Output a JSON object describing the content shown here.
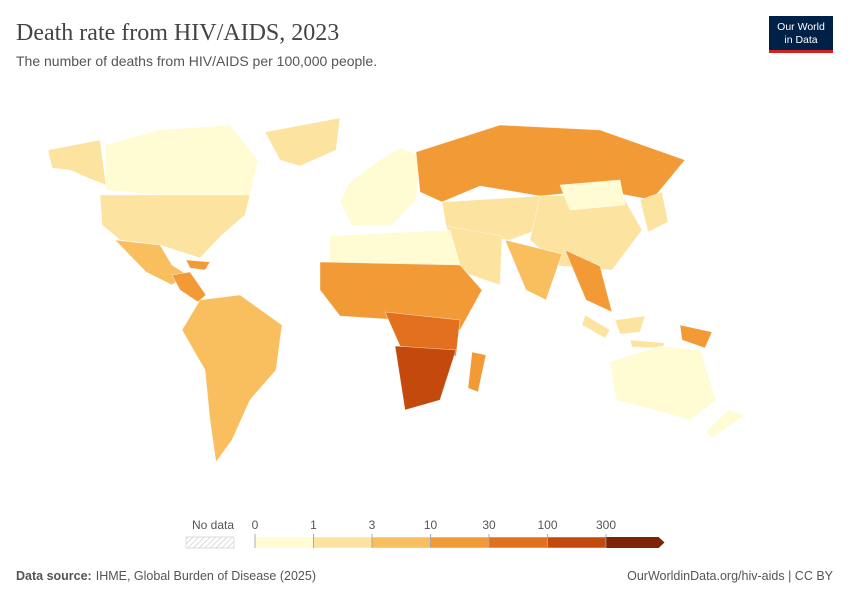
{
  "header": {
    "title": "Death rate from HIV/AIDS, 2023",
    "subtitle": "The number of deaths from HIV/AIDS per 100,000 people."
  },
  "logo": [
    "Our World",
    "in Data"
  ],
  "legend": {
    "no_data": "No data",
    "ticks": [
      0,
      1,
      3,
      10,
      30,
      100,
      300
    ],
    "colors": [
      "#fffbd3",
      "#fde3a0",
      "#f9be5e",
      "#f29a35",
      "#e2701e",
      "#c3490c",
      "#7d2406"
    ]
  },
  "footer": {
    "source_label": "Data source:",
    "source": "IHME, Global Burden of Disease (2025)",
    "right": "OurWorldinData.org/hiv-aids | CC BY"
  }
}
